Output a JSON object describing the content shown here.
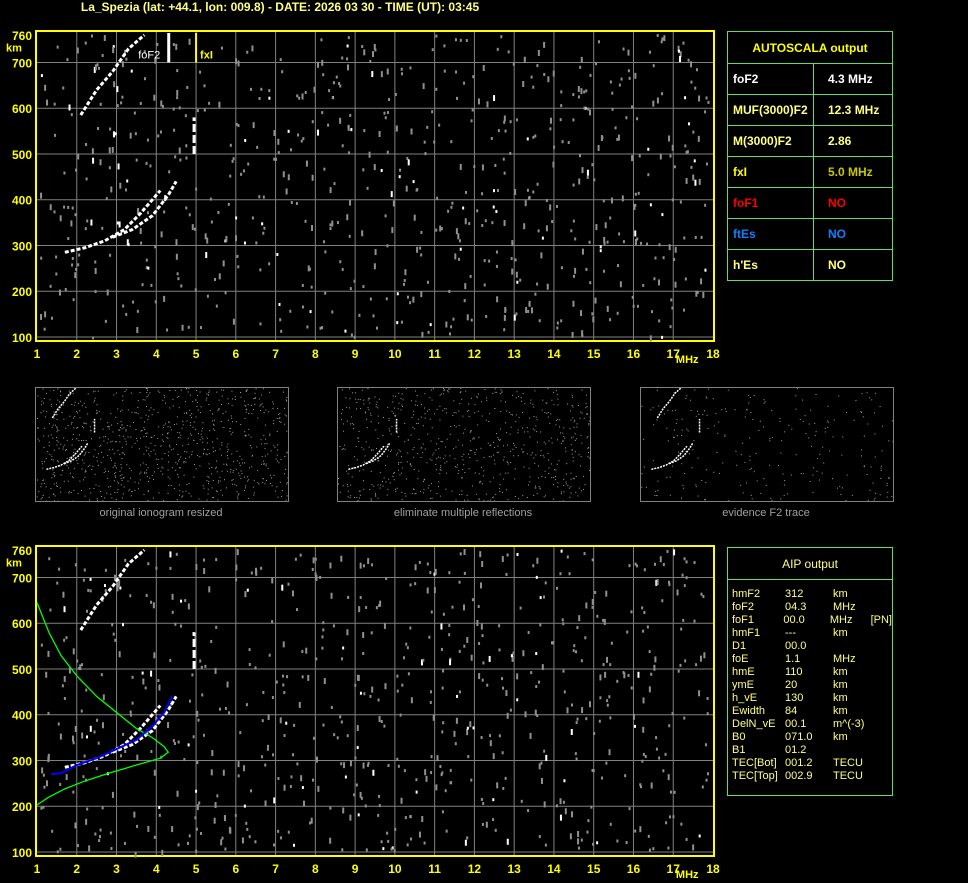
{
  "title": "La_Spezia (lat: +44.1, lon: 009.8) - DATE: 2026 03 30 - TIME (UT): 03:45",
  "colors": {
    "axis": "#ffff00",
    "grid": "#808080",
    "trace": "#ffffff",
    "profile": "#00ff00",
    "fit": "#0000ff",
    "table_border": "#60e060"
  },
  "chart_data": [
    {
      "type": "scatter",
      "name": "ionogram-autoscala",
      "xlabel": "MHz",
      "ylabel": "km",
      "xlim": [
        1,
        18
      ],
      "ylim": [
        100,
        760
      ],
      "x_ticks": [
        "1",
        "2",
        "3",
        "4",
        "5",
        "6",
        "7",
        "8",
        "9",
        "10",
        "11",
        "12",
        "13",
        "14",
        "15",
        "16",
        "17",
        "18"
      ],
      "y_ticks": [
        "100",
        "200",
        "300",
        "400",
        "500",
        "600",
        "700",
        "760"
      ],
      "grid": true,
      "markers": [
        {
          "label": "foF2",
          "x": 4.3,
          "color": "#ffffff"
        },
        {
          "label": "fxI",
          "x": 5.0,
          "color": "#ffff00"
        }
      ],
      "traces": [
        {
          "points": [
            [
              1.7,
              285
            ],
            [
              2.2,
              295
            ],
            [
              2.7,
              310
            ],
            [
              3.2,
              335
            ],
            [
              3.6,
              370
            ],
            [
              3.9,
              400
            ],
            [
              4.1,
              420
            ]
          ]
        },
        {
          "points": [
            [
              2.9,
              318
            ],
            [
              3.4,
              335
            ],
            [
              3.9,
              365
            ],
            [
              4.3,
              410
            ],
            [
              4.5,
              440
            ]
          ]
        },
        {
          "points": [
            [
              2.1,
              585
            ],
            [
              2.5,
              640
            ],
            [
              2.9,
              680
            ],
            [
              3.3,
              730
            ],
            [
              3.7,
              760
            ]
          ]
        },
        {
          "points": [
            [
              4.95,
              500
            ],
            [
              4.95,
              580
            ]
          ]
        }
      ]
    },
    {
      "type": "line",
      "name": "ionogram-aip",
      "xlabel": "MHz",
      "ylabel": "km",
      "xlim": [
        1,
        18
      ],
      "ylim": [
        100,
        760
      ],
      "x_ticks": [
        "1",
        "2",
        "3",
        "4",
        "5",
        "6",
        "7",
        "8",
        "9",
        "10",
        "11",
        "12",
        "13",
        "14",
        "15",
        "16",
        "17",
        "18"
      ],
      "y_ticks": [
        "100",
        "200",
        "300",
        "400",
        "500",
        "600",
        "700",
        "760"
      ],
      "grid": true,
      "series": [
        {
          "color": "#00ff00",
          "points": [
            [
              1.0,
              645
            ],
            [
              1.3,
              580
            ],
            [
              1.6,
              530
            ],
            [
              2.0,
              485
            ],
            [
              2.5,
              440
            ],
            [
              3.0,
              405
            ],
            [
              3.5,
              370
            ],
            [
              3.9,
              350
            ],
            [
              4.2,
              330
            ],
            [
              4.3,
              318
            ],
            [
              4.1,
              305
            ],
            [
              3.5,
              290
            ],
            [
              2.8,
              272
            ],
            [
              2.2,
              255
            ],
            [
              1.7,
              238
            ],
            [
              1.3,
              220
            ],
            [
              1.0,
              203
            ]
          ]
        },
        {
          "color": "#0000ff",
          "points": [
            [
              1.35,
              270
            ],
            [
              1.6,
              272
            ],
            [
              2.0,
              290
            ],
            [
              2.5,
              305
            ],
            [
              3.0,
              325
            ],
            [
              3.5,
              345
            ],
            [
              3.9,
              375
            ],
            [
              4.2,
              405
            ],
            [
              4.4,
              440
            ]
          ]
        }
      ],
      "traces": [
        {
          "points": [
            [
              1.7,
              285
            ],
            [
              2.2,
              295
            ],
            [
              2.7,
              310
            ],
            [
              3.2,
              335
            ],
            [
              3.6,
              370
            ],
            [
              3.9,
              400
            ],
            [
              4.1,
              420
            ]
          ]
        },
        {
          "points": [
            [
              2.9,
              318
            ],
            [
              3.4,
              335
            ],
            [
              3.9,
              365
            ],
            [
              4.3,
              410
            ],
            [
              4.5,
              440
            ]
          ]
        },
        {
          "points": [
            [
              2.1,
              585
            ],
            [
              2.5,
              640
            ],
            [
              2.9,
              680
            ],
            [
              3.3,
              730
            ],
            [
              3.7,
              760
            ]
          ]
        },
        {
          "points": [
            [
              4.95,
              500
            ],
            [
              4.95,
              580
            ]
          ]
        }
      ]
    }
  ],
  "thumbnails": [
    {
      "caption": "original ionogram resized"
    },
    {
      "caption": "eliminate multiple reflections"
    },
    {
      "caption": "evidence F2 trace"
    }
  ],
  "autoscala": {
    "header": "AUTOSCALA output",
    "rows": [
      {
        "key": "foF2",
        "value": "4.3 MHz",
        "kcolor": "#ffffff",
        "vcolor": "#ffffff"
      },
      {
        "key": "MUF(3000)F2",
        "value": "12.3 MHz",
        "kcolor": "#ffff80",
        "vcolor": "#ffff80"
      },
      {
        "key": "M(3000)F2",
        "value": "2.86",
        "kcolor": "#ffff80",
        "vcolor": "#ffff80"
      },
      {
        "key": "fxI",
        "value": "5.0 MHz",
        "kcolor": "#ffff00",
        "vcolor": "#c8c800"
      },
      {
        "key": "foF1",
        "value": "NO",
        "kcolor": "#ff0000",
        "vcolor": "#ff0000"
      },
      {
        "key": "ftEs",
        "value": "NO",
        "kcolor": "#1080ff",
        "vcolor": "#1080ff"
      },
      {
        "key": "h'Es",
        "value": "NO",
        "kcolor": "#ffff80",
        "vcolor": "#ffff80"
      }
    ]
  },
  "aip": {
    "header": "AIP output",
    "rows": [
      [
        "hmF2",
        "312",
        "km",
        ""
      ],
      [
        "foF2",
        "04.3",
        "MHz",
        ""
      ],
      [
        "foF1",
        "00.0",
        "MHz",
        "[PN]"
      ],
      [
        "hmF1",
        "---",
        "km",
        ""
      ],
      [
        "D1",
        "00.0",
        "",
        ""
      ],
      [
        "foE",
        "1.1",
        "MHz",
        ""
      ],
      [
        "hmE",
        "110",
        "km",
        ""
      ],
      [
        "ymE",
        "20",
        "km",
        ""
      ],
      [
        "h_vE",
        "130",
        "km",
        ""
      ],
      [
        "Ewidth",
        "84",
        "km",
        ""
      ],
      [
        "DelN_vE",
        "00.1",
        "m^(-3)",
        ""
      ],
      [
        "B0",
        "071.0",
        "km",
        ""
      ],
      [
        "B1",
        "01.2",
        "",
        ""
      ],
      [
        "TEC[Bot]",
        "001.2",
        "TECU",
        ""
      ],
      [
        "TEC[Top]",
        "002.9",
        "TECU",
        ""
      ]
    ]
  }
}
